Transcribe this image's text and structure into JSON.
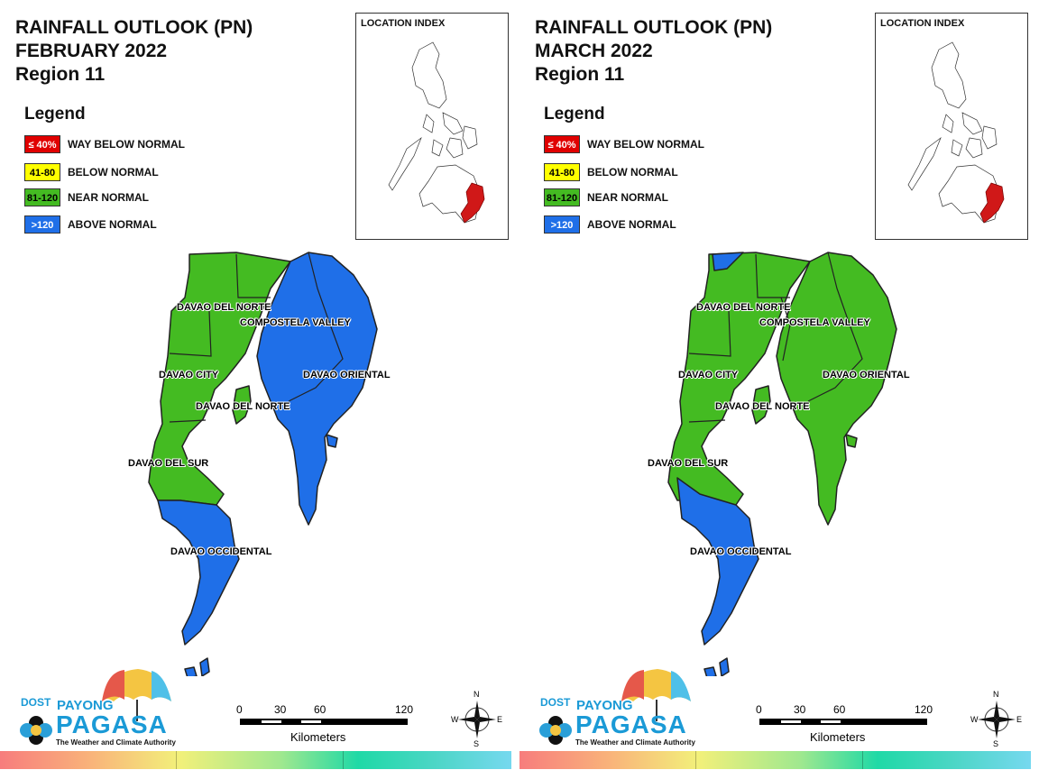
{
  "panels": [
    {
      "title_line1": "RAINFALL OUTLOOK (PN)",
      "title_line2": "FEBRUARY 2022",
      "title_line3": "Region 11",
      "legend_title": "Legend",
      "legend": [
        {
          "swatch": "≤ 40%",
          "label": "WAY BELOW NORMAL",
          "color": "#e00000",
          "text_color": "#ffffff"
        },
        {
          "swatch": "41-80",
          "label": "BELOW NORMAL",
          "color": "#ffff00",
          "text_color": "#000000"
        },
        {
          "swatch": "81-120",
          "label": "NEAR NORMAL",
          "color": "#44bb22",
          "text_color": "#000000"
        },
        {
          "swatch": ">120",
          "label": "ABOVE NORMAL",
          "color": "#1f6fe8",
          "text_color": "#ffffff"
        }
      ],
      "inset_title": "LOCATION INDEX",
      "map_labels": {
        "davao_del_norte": "DAVAO DEL NORTE",
        "compostela_valley": "COMPOSTELA VALLEY",
        "davao_city": "DAVAO CITY",
        "davao_oriental": "DAVAO ORIENTAL",
        "davao_del_norte_2": "DAVAO DEL NORTE",
        "davao_del_sur": "DAVAO DEL SUR",
        "davao_occidental": "DAVAO OCCIDENTAL"
      },
      "provinces": {
        "davao_del_norte": "near_normal",
        "compostela_valley": "above_normal",
        "davao_city": "near_normal",
        "davao_oriental": "above_normal",
        "davao_del_sur": "near_normal",
        "davao_occidental": "above_normal"
      }
    },
    {
      "title_line1": "RAINFALL OUTLOOK (PN)",
      "title_line2": "MARCH 2022",
      "title_line3": "Region 11",
      "legend_title": "Legend",
      "legend": [
        {
          "swatch": "≤ 40%",
          "label": "WAY BELOW NORMAL",
          "color": "#e00000",
          "text_color": "#ffffff"
        },
        {
          "swatch": "41-80",
          "label": "BELOW NORMAL",
          "color": "#ffff00",
          "text_color": "#000000"
        },
        {
          "swatch": "81-120",
          "label": "NEAR NORMAL",
          "color": "#44bb22",
          "text_color": "#000000"
        },
        {
          "swatch": ">120",
          "label": "ABOVE NORMAL",
          "color": "#1f6fe8",
          "text_color": "#ffffff"
        }
      ],
      "inset_title": "LOCATION INDEX",
      "map_labels": {
        "davao_del_norte": "DAVAO DEL NORTE",
        "compostela_valley": "COMPOSTELA VALLEY",
        "davao_city": "DAVAO CITY",
        "davao_oriental": "DAVAO ORIENTAL",
        "davao_del_norte_2": "DAVAO DEL NORTE",
        "davao_del_sur": "DAVAO DEL SUR",
        "davao_occidental": "DAVAO OCCIDENTAL"
      },
      "provinces": {
        "davao_del_norte": "near_normal",
        "compostela_valley": "near_normal",
        "davao_city": "near_normal",
        "davao_oriental": "near_normal",
        "davao_del_sur": "near_normal",
        "davao_occidental": "above_normal"
      }
    }
  ],
  "colors": {
    "near_normal": "#44bb22",
    "above_normal": "#1f6fe8",
    "highlight_region": "#d01818"
  },
  "logo": {
    "dost": "DOST",
    "payong": "PAYONG",
    "pagasa": "PAGASA",
    "tagline": "The Weather and Climate Authority"
  },
  "scalebar": {
    "ticks": [
      "0",
      "30",
      "60",
      "120"
    ],
    "unit_label": "Kilometers"
  },
  "compass": {
    "n": "N",
    "s": "S",
    "e": "E",
    "w": "W"
  }
}
